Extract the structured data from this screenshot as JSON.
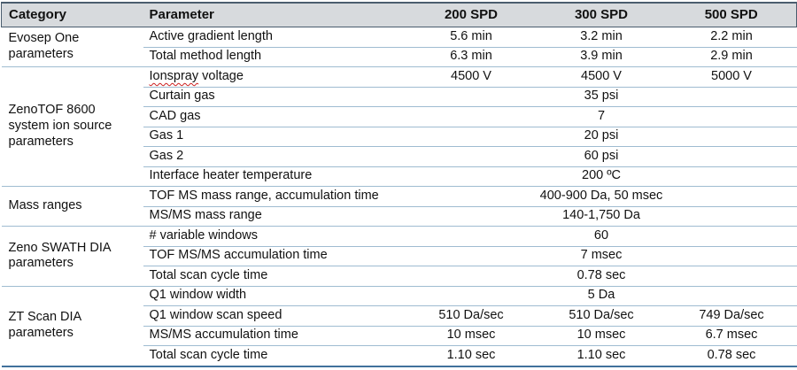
{
  "colors": {
    "header_bg": "#d7dadd",
    "header_border": "#4a5d6e",
    "row_line": "#9fbcd1",
    "bottom_border": "#41719c",
    "squiggle_red": "#cc1f1f"
  },
  "table": {
    "headers": [
      "Category",
      "Parameter",
      "200 SPD",
      "300 SPD",
      "500 SPD"
    ],
    "groups": [
      {
        "category": "Evosep One parameters",
        "rows": [
          {
            "parameter": "Active gradient length",
            "values": [
              "5.6 min",
              "3.2 min",
              "2.2 min"
            ]
          },
          {
            "parameter": "Total method length",
            "values": [
              "6.3 min",
              "3.9 min",
              "2.9 min"
            ]
          }
        ]
      },
      {
        "category": "ZenoTOF 8600 system ion source parameters",
        "rows": [
          {
            "parameter": "Ionspray voltage",
            "misspelled_word": "Ionspray",
            "values": [
              "4500 V",
              "4500 V",
              "5000 V"
            ]
          },
          {
            "parameter": "Curtain gas",
            "span_value": "35 psi"
          },
          {
            "parameter": "CAD gas",
            "span_value": "7"
          },
          {
            "parameter": "Gas 1",
            "span_value": "20 psi"
          },
          {
            "parameter": "Gas 2",
            "span_value": "60 psi"
          },
          {
            "parameter": "Interface heater temperature",
            "span_value": "200 ºC"
          }
        ]
      },
      {
        "category": "Mass ranges",
        "rows": [
          {
            "parameter": "TOF MS mass range, accumulation time",
            "span_value": "400-900 Da, 50 msec"
          },
          {
            "parameter": "MS/MS mass range",
            "span_value": "140-1,750 Da"
          }
        ]
      },
      {
        "category": "Zeno SWATH DIA parameters",
        "rows": [
          {
            "parameter": "# variable windows",
            "span_value": "60"
          },
          {
            "parameter": "TOF MS/MS accumulation time",
            "span_value": "7 msec"
          },
          {
            "parameter": "Total scan cycle time",
            "span_value": "0.78 sec"
          }
        ]
      },
      {
        "category": "ZT Scan DIA parameters",
        "rows": [
          {
            "parameter": "Q1 window width",
            "span_value": "5 Da"
          },
          {
            "parameter": "Q1 window scan speed",
            "values": [
              "510 Da/sec",
              "510 Da/sec",
              "749 Da/sec"
            ]
          },
          {
            "parameter": "MS/MS accumulation time",
            "values": [
              "10 msec",
              "10 msec",
              "6.7 msec"
            ]
          },
          {
            "parameter": "Total scan cycle time",
            "values": [
              "1.10 sec",
              "1.10 sec",
              "0.78 sec"
            ]
          }
        ]
      }
    ]
  }
}
